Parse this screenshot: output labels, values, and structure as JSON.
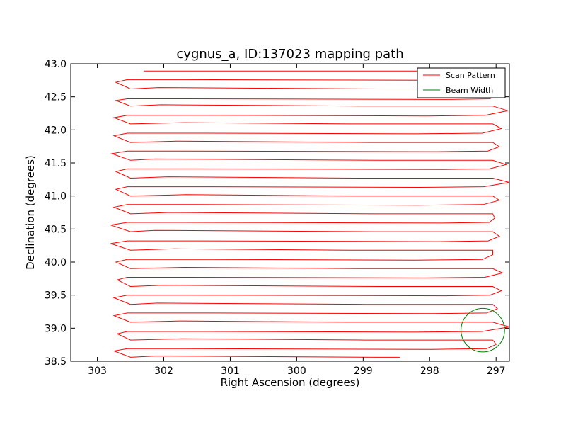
{
  "chart_data": {
    "type": "line",
    "title": "cygnus_a, ID:137023 mapping path",
    "xlabel": "Right Ascension (degrees)",
    "ylabel": "Declination (degrees)",
    "xlim": [
      303.4,
      296.8
    ],
    "ylim": [
      38.5,
      43.0
    ],
    "x_inverted": true,
    "x_ticks": [
      303,
      302,
      301,
      300,
      299,
      298,
      297
    ],
    "x_tick_labels": [
      "303",
      "302",
      "301",
      "300",
      "299",
      "298",
      "297"
    ],
    "y_ticks": [
      38.5,
      39.0,
      39.5,
      40.0,
      40.5,
      41.0,
      41.5,
      42.0,
      42.5,
      43.0
    ],
    "y_tick_labels": [
      "38.5",
      "39.0",
      "39.5",
      "40.0",
      "40.5",
      "41.0",
      "41.5",
      "42.0",
      "42.5",
      "43.0"
    ],
    "grid": false,
    "legend_position": "top-right",
    "series": [
      {
        "name": "Scan Pattern",
        "color": "#ff0000",
        "style": "boustrophedon",
        "start": [
          302.3,
          42.89
        ],
        "end": [
          298.45,
          38.56
        ],
        "left_ra": 302.55,
        "right_ra": 297.05,
        "row_decs": [
          42.89,
          42.76,
          42.62,
          42.47,
          42.36,
          42.22,
          42.09,
          41.95,
          41.81,
          41.68,
          41.54,
          41.41,
          41.27,
          41.14,
          41.0,
          40.87,
          40.73,
          40.6,
          40.46,
          40.32,
          40.18,
          40.04,
          39.9,
          39.77,
          39.63,
          39.5,
          39.36,
          39.23,
          39.09,
          38.95,
          38.82,
          38.69,
          38.56
        ],
        "turn_left_ra": [
          302.72,
          302.72,
          302.75,
          302.75,
          302.78,
          302.72,
          302.72,
          302.75,
          302.8,
          302.8,
          302.72,
          302.7,
          302.75,
          302.75,
          302.7,
          302.75
        ],
        "turn_right_ra": [
          297.05,
          296.98,
          296.82,
          296.92,
          296.95,
          296.85,
          296.8,
          296.95,
          297.02,
          296.95,
          297.05,
          296.9,
          296.92,
          296.98,
          296.8,
          297.0
        ]
      },
      {
        "name": "Beam Width",
        "color": "#008000",
        "type": "circle",
        "center": [
          297.2,
          38.97
        ],
        "radius_deg": 0.33
      }
    ]
  }
}
